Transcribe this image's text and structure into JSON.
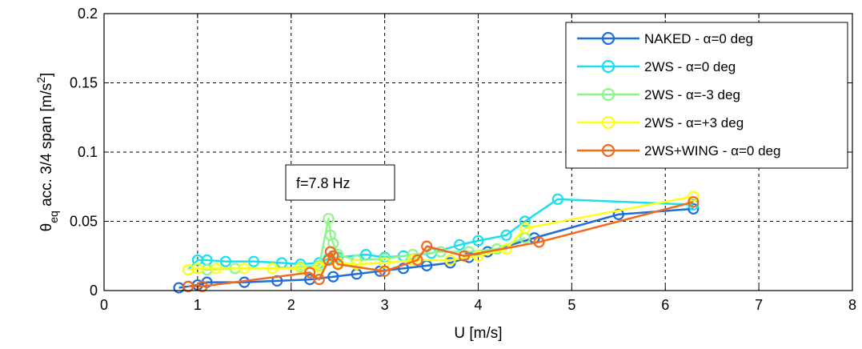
{
  "chart_data": {
    "type": "line",
    "xlabel": "U [m/s]",
    "ylabel": {
      "theta": "θ",
      "sub": "eq",
      "mid": " acc. 3/4 span [m/s",
      "sup": "2",
      "end": "]"
    },
    "xlim": [
      0,
      8
    ],
    "ylim": [
      0,
      0.2
    ],
    "xticks": [
      "0",
      "1",
      "2",
      "3",
      "4",
      "5",
      "6",
      "7",
      "8"
    ],
    "yticks": [
      "0",
      "0.05",
      "0.1",
      "0.15",
      "0.2"
    ],
    "grid": true,
    "legend_position": "top-right",
    "annotation": "f=7.8 Hz",
    "series": [
      {
        "name": "NAKED  - α=0 deg",
        "color": "#1f6fd6",
        "x": [
          0.8,
          0.9,
          1.0,
          1.1,
          1.5,
          1.85,
          2.2,
          2.45,
          2.7,
          2.95,
          3.2,
          3.45,
          3.7,
          3.9,
          4.1,
          4.6,
          5.5,
          6.3
        ],
        "y": [
          0.002,
          0.003,
          0.004,
          0.006,
          0.006,
          0.007,
          0.008,
          0.01,
          0.012,
          0.014,
          0.016,
          0.018,
          0.02,
          0.024,
          0.028,
          0.038,
          0.055,
          0.059
        ]
      },
      {
        "name": "2WS - α=0 deg",
        "color": "#19e0f0",
        "x": [
          0.9,
          1.0,
          1.1,
          1.3,
          1.6,
          1.9,
          2.1,
          2.3,
          2.4,
          2.5,
          2.8,
          3.0,
          3.2,
          3.5,
          3.8,
          4.0,
          4.3,
          4.5,
          4.85,
          6.3
        ],
        "y": [
          0.015,
          0.022,
          0.022,
          0.021,
          0.021,
          0.02,
          0.019,
          0.02,
          0.023,
          0.024,
          0.026,
          0.024,
          0.025,
          0.027,
          0.033,
          0.036,
          0.04,
          0.05,
          0.066,
          0.062
        ]
      },
      {
        "name": "2WS - α=-3 deg",
        "color": "#8ef58a",
        "x": [
          0.9,
          1.0,
          1.1,
          1.4,
          1.8,
          2.1,
          2.3,
          2.4,
          2.42,
          2.45,
          2.5,
          2.7,
          3.0,
          3.3,
          3.6,
          3.9,
          4.2,
          4.5
        ],
        "y": [
          0.015,
          0.016,
          0.015,
          0.016,
          0.016,
          0.017,
          0.018,
          0.052,
          0.04,
          0.034,
          0.026,
          0.022,
          0.023,
          0.026,
          0.028,
          0.028,
          0.03,
          0.038
        ]
      },
      {
        "name": "2WS - α=+3 deg",
        "color": "#ffff1a",
        "x": [
          0.9,
          1.0,
          1.2,
          1.5,
          1.8,
          2.1,
          2.3,
          2.4,
          2.5,
          2.7,
          3.0,
          3.3,
          3.7,
          4.0,
          4.3,
          4.5,
          6.3
        ],
        "y": [
          0.015,
          0.016,
          0.016,
          0.016,
          0.016,
          0.016,
          0.017,
          0.022,
          0.02,
          0.019,
          0.02,
          0.022,
          0.022,
          0.025,
          0.03,
          0.045,
          0.068
        ]
      },
      {
        "name": "2WS+WING - α=0 deg",
        "color": "#f26b1d",
        "x": [
          0.9,
          1.05,
          2.2,
          2.3,
          2.4,
          2.42,
          2.45,
          2.5,
          3.0,
          3.35,
          3.45,
          3.85,
          4.65,
          6.3
        ],
        "y": [
          0.003,
          0.003,
          0.013,
          0.008,
          0.022,
          0.028,
          0.025,
          0.019,
          0.014,
          0.022,
          0.032,
          0.025,
          0.035,
          0.064
        ]
      }
    ]
  }
}
